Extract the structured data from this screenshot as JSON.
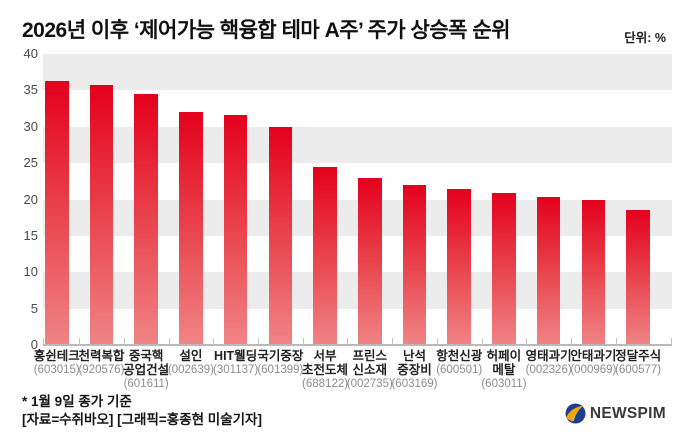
{
  "header": {
    "title": "2026년 이후 ‘제어가능 핵융합 테마 A주’ 주가 상승폭 순위",
    "unit_label": "단위: %"
  },
  "footer": {
    "note1": "* 1월 9일 종가 기준",
    "note2": "[자료=수쥐바오] [그래픽=홍종현 미술기자]",
    "logo_text": "NEWSPIM"
  },
  "colors": {
    "bar_top": "#e4001c",
    "bar_bottom": "#f08486",
    "band_gray": "#ececec",
    "axis_line": "#b9b9b9",
    "code_text": "#8c8c8c",
    "logo_blue": "#1d3f8f",
    "logo_yellow": "#f5a800"
  },
  "chart_data": {
    "type": "bar",
    "title": "2026년 이후 ‘제어가능 핵융합 테마 A주’ 주가 상승폭 순위",
    "unit": "%",
    "xlabel": "",
    "ylabel": "",
    "ylim": [
      0,
      40
    ],
    "yticks": [
      0,
      5,
      10,
      15,
      20,
      25,
      30,
      35,
      40
    ],
    "grid": "alternating horizontal gray bands every 5 units (35-40, 25-30, 15-20, 5-10)",
    "legend_position": "none",
    "categories": [
      {
        "name_lines": [
          "홍쉰테크"
        ],
        "code": "(603015)"
      },
      {
        "name_lines": [
          "천력복합"
        ],
        "code": "(920576)"
      },
      {
        "name_lines": [
          "중국핵",
          "공업건설"
        ],
        "code": "(601611)"
      },
      {
        "name_lines": [
          "설인"
        ],
        "code": "(002639)"
      },
      {
        "name_lines": [
          "HIT웰딩"
        ],
        "code": "(301137)"
      },
      {
        "name_lines": [
          "국기중장"
        ],
        "code": "(601399)"
      },
      {
        "name_lines": [
          "서부",
          "초전도체"
        ],
        "code": "(688122)"
      },
      {
        "name_lines": [
          "프린스",
          "신소재"
        ],
        "code": "(002735)"
      },
      {
        "name_lines": [
          "난석",
          "중장비"
        ],
        "code": "(603169)"
      },
      {
        "name_lines": [
          "항천신광"
        ],
        "code": "(600501)"
      },
      {
        "name_lines": [
          "허페이",
          "메탈"
        ],
        "code": "(603011)"
      },
      {
        "name_lines": [
          "영태과기"
        ],
        "code": "(002326)"
      },
      {
        "name_lines": [
          "안태과기"
        ],
        "code": "(000969)"
      },
      {
        "name_lines": [
          "정달주식"
        ],
        "code": "(600577)"
      }
    ],
    "values": [
      36.3,
      35.8,
      34.5,
      32.0,
      31.6,
      30.0,
      24.5,
      23.0,
      22.0,
      21.4,
      20.9,
      20.3,
      19.9,
      18.6
    ]
  }
}
